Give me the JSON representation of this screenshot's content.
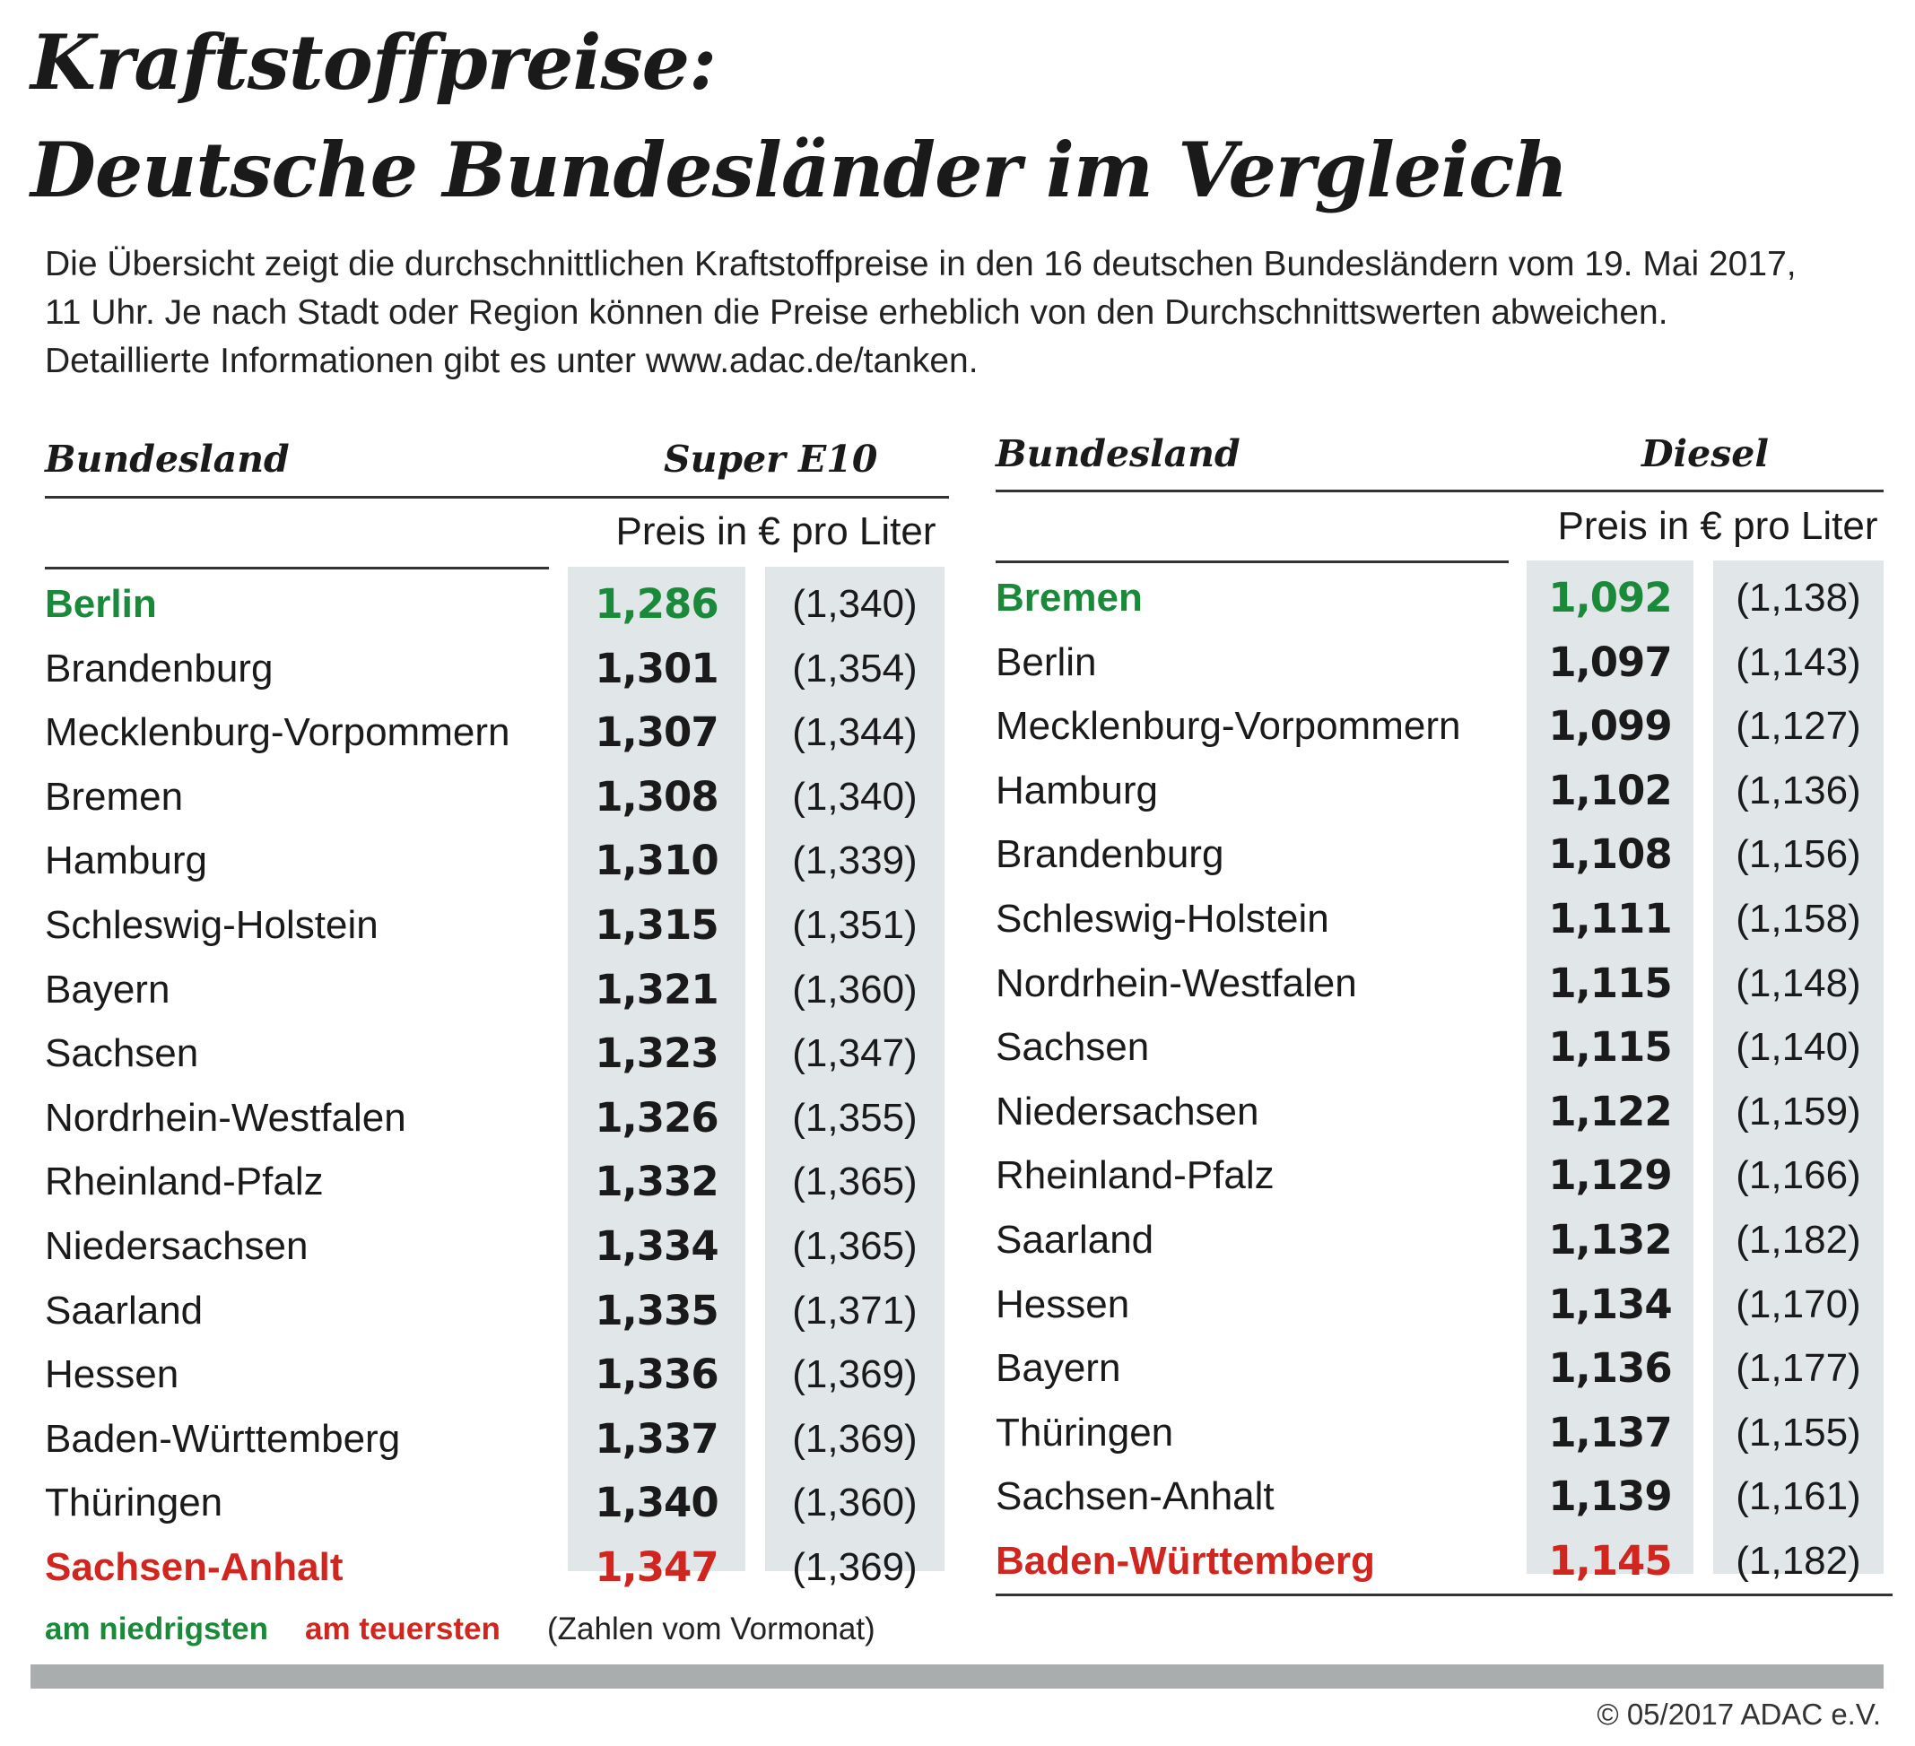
{
  "title_line1": "Kraftstoffpreise:",
  "title_line2": "Deutsche Bundesländer im Vergleich",
  "intro": [
    "Die Übersicht zeigt die durchschnittlichen Kraftstoffpreise in den 16 deutschen Bundesländern vom 19. Mai 2017,",
    "11 Uhr. Je nach Stadt oder Region können die Preise erheblich von den Durchschnittswerten abweichen.",
    "Detaillierte Informationen gibt es unter www.adac.de/tanken."
  ],
  "colors": {
    "lowest": "#1a8a3a",
    "highest": "#d0261f",
    "band": "#e1e6e8",
    "footer_bar": "#a9adae"
  },
  "chart_data": [
    {
      "type": "table",
      "fuel": "Super E10",
      "col_state": "Bundesland",
      "unit": "Preis in € pro Liter",
      "rows": [
        {
          "state": "Berlin",
          "price": "1,286",
          "prev": "(1,340)",
          "mark": "lowest"
        },
        {
          "state": "Brandenburg",
          "price": "1,301",
          "prev": "(1,354)",
          "mark": ""
        },
        {
          "state": "Mecklenburg-Vorpommern",
          "price": "1,307",
          "prev": "(1,344)",
          "mark": ""
        },
        {
          "state": "Bremen",
          "price": "1,308",
          "prev": "(1,340)",
          "mark": ""
        },
        {
          "state": "Hamburg",
          "price": "1,310",
          "prev": "(1,339)",
          "mark": ""
        },
        {
          "state": "Schleswig-Holstein",
          "price": "1,315",
          "prev": "(1,351)",
          "mark": ""
        },
        {
          "state": "Bayern",
          "price": "1,321",
          "prev": "(1,360)",
          "mark": ""
        },
        {
          "state": "Sachsen",
          "price": "1,323",
          "prev": "(1,347)",
          "mark": ""
        },
        {
          "state": "Nordrhein-Westfalen",
          "price": "1,326",
          "prev": "(1,355)",
          "mark": ""
        },
        {
          "state": "Rheinland-Pfalz",
          "price": "1,332",
          "prev": "(1,365)",
          "mark": ""
        },
        {
          "state": "Niedersachsen",
          "price": "1,334",
          "prev": "(1,365)",
          "mark": ""
        },
        {
          "state": "Saarland",
          "price": "1,335",
          "prev": "(1,371)",
          "mark": ""
        },
        {
          "state": "Hessen",
          "price": "1,336",
          "prev": "(1,369)",
          "mark": ""
        },
        {
          "state": "Baden-Württemberg",
          "price": "1,337",
          "prev": "(1,369)",
          "mark": ""
        },
        {
          "state": "Thüringen",
          "price": "1,340",
          "prev": "(1,360)",
          "mark": ""
        },
        {
          "state": "Sachsen-Anhalt",
          "price": "1,347",
          "prev": "(1,369)",
          "mark": "highest"
        }
      ]
    },
    {
      "type": "table",
      "fuel": "Diesel",
      "col_state": "Bundesland",
      "unit": "Preis in € pro Liter",
      "rows": [
        {
          "state": "Bremen",
          "price": "1,092",
          "prev": "(1,138)",
          "mark": "lowest"
        },
        {
          "state": "Berlin",
          "price": "1,097",
          "prev": "(1,143)",
          "mark": ""
        },
        {
          "state": "Mecklenburg-Vorpommern",
          "price": "1,099",
          "prev": "(1,127)",
          "mark": ""
        },
        {
          "state": "Hamburg",
          "price": "1,102",
          "prev": "(1,136)",
          "mark": ""
        },
        {
          "state": "Brandenburg",
          "price": "1,108",
          "prev": "(1,156)",
          "mark": ""
        },
        {
          "state": "Schleswig-Holstein",
          "price": "1,111",
          "prev": "(1,158)",
          "mark": ""
        },
        {
          "state": "Nordrhein-Westfalen",
          "price": "1,115",
          "prev": "(1,148)",
          "mark": ""
        },
        {
          "state": "Sachsen",
          "price": "1,115",
          "prev": "(1,140)",
          "mark": ""
        },
        {
          "state": "Niedersachsen",
          "price": "1,122",
          "prev": "(1,159)",
          "mark": ""
        },
        {
          "state": "Rheinland-Pfalz",
          "price": "1,129",
          "prev": "(1,166)",
          "mark": ""
        },
        {
          "state": "Saarland",
          "price": "1,132",
          "prev": "(1,182)",
          "mark": ""
        },
        {
          "state": "Hessen",
          "price": "1,134",
          "prev": "(1,170)",
          "mark": ""
        },
        {
          "state": "Bayern",
          "price": "1,136",
          "prev": "(1,177)",
          "mark": ""
        },
        {
          "state": "Thüringen",
          "price": "1,137",
          "prev": "(1,155)",
          "mark": ""
        },
        {
          "state": "Sachsen-Anhalt",
          "price": "1,139",
          "prev": "(1,161)",
          "mark": ""
        },
        {
          "state": "Baden-Württemberg",
          "price": "1,145",
          "prev": "(1,182)",
          "mark": "highest"
        }
      ]
    }
  ],
  "legend": {
    "lowest": "am niedrigsten",
    "highest": "am teuersten",
    "previous": "(Zahlen vom Vormonat)"
  },
  "copyright": "© 05/2017 ADAC e.V."
}
